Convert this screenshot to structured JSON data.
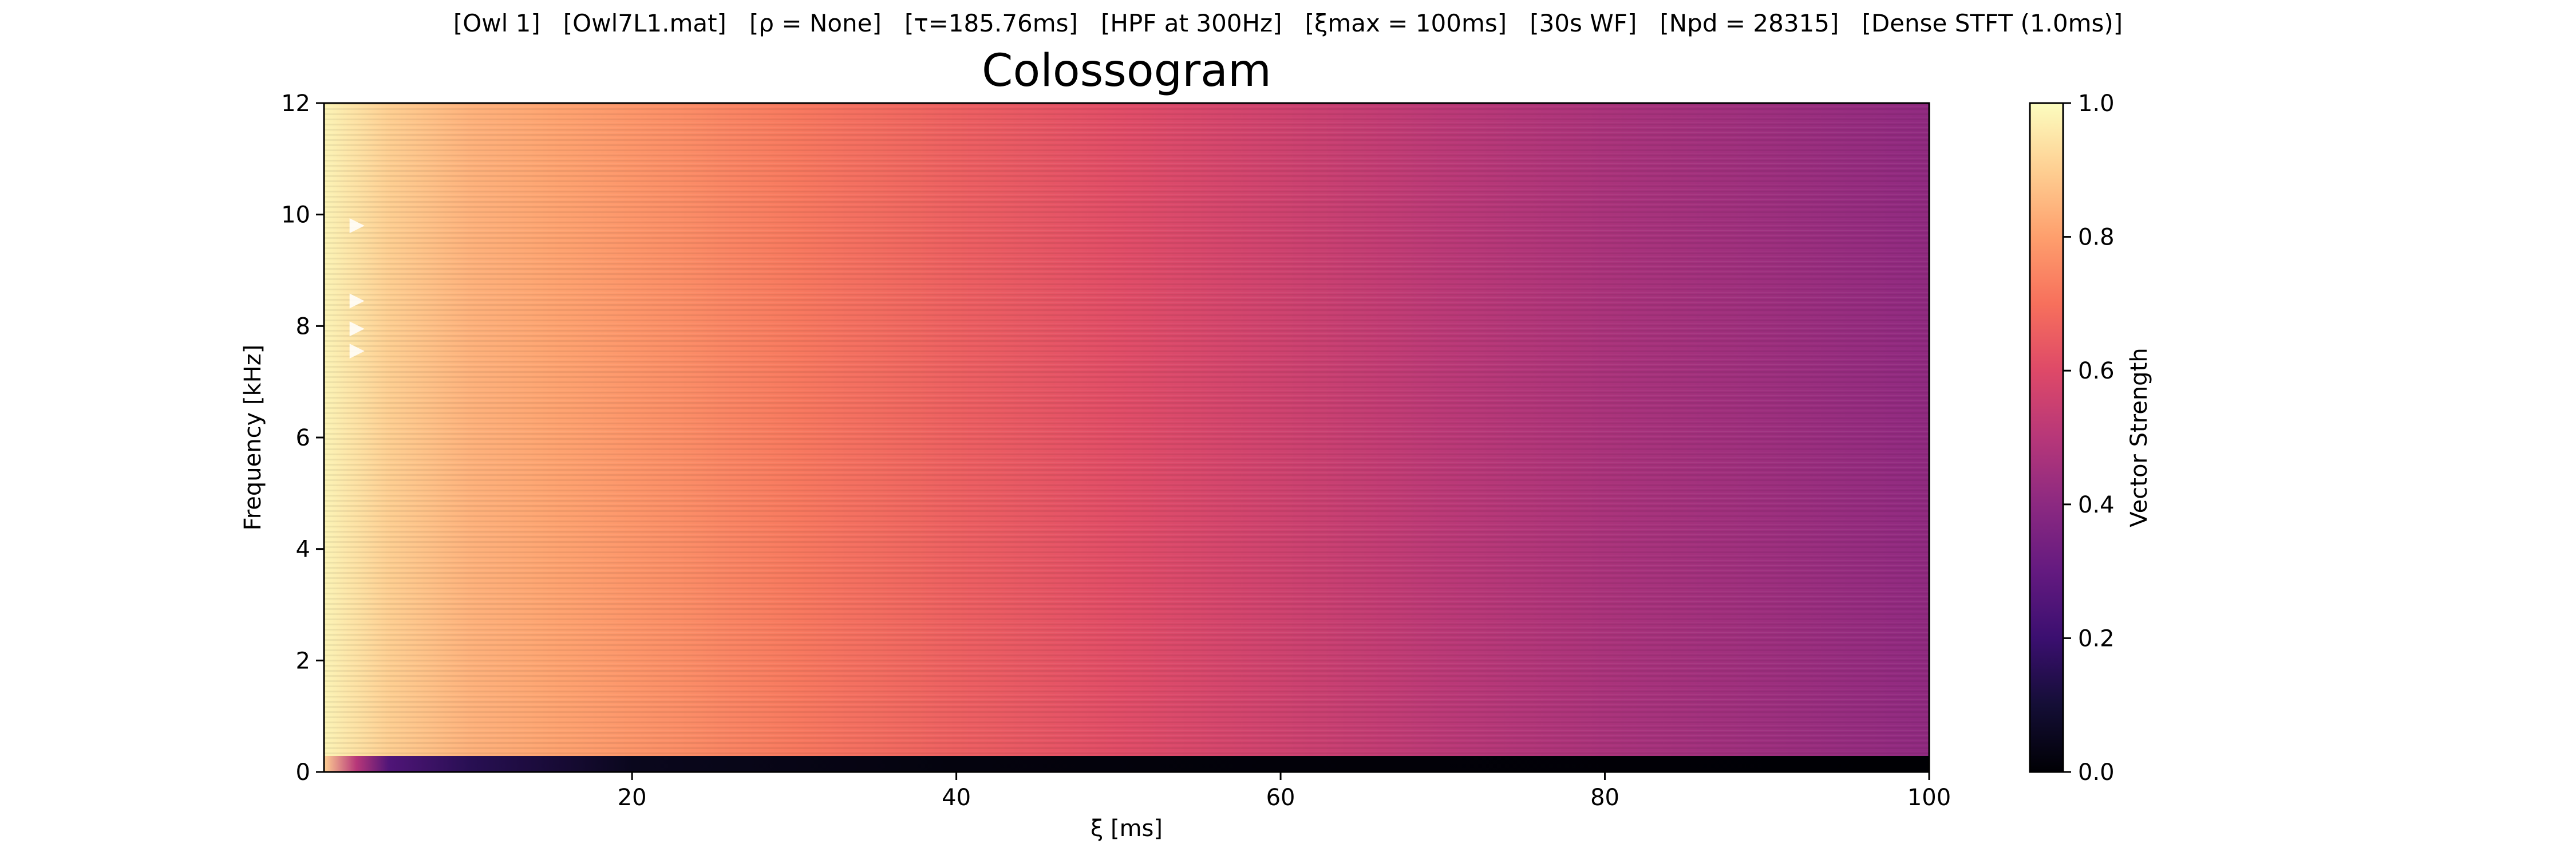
{
  "suptitle": "[Owl 1]   [Owl7L1.mat]   [ρ = None]   [τ=185.76ms]   [HPF at 300Hz]   [ξmax = 100ms]   [30s WF]   [Npd = 28315]   [Dense STFT (1.0ms)]",
  "chart_data": {
    "type": "heatmap",
    "title": "Colossogram",
    "xlabel": "ξ [ms]",
    "ylabel": "Frequency [kHz]",
    "xlim": [
      1,
      100
    ],
    "ylim": [
      0,
      12
    ],
    "x_ticks": [
      20,
      40,
      60,
      80,
      100
    ],
    "y_ticks": [
      0,
      2,
      4,
      6,
      8,
      10,
      12
    ],
    "colormap": "magma",
    "colorbar": {
      "label": "Vector Strength",
      "range": [
        0.0,
        1.0
      ],
      "ticks": [
        0.0,
        0.2,
        0.4,
        0.6,
        0.8,
        1.0
      ],
      "tick_labels": [
        "0.0",
        "0.2",
        "0.4",
        "0.6",
        "0.8",
        "1.0"
      ]
    },
    "vector_strength_vs_xi": {
      "xi_ms": [
        1,
        5,
        10,
        15,
        20,
        30,
        40,
        50,
        60,
        70,
        80,
        90,
        100
      ],
      "value": [
        0.98,
        0.9,
        0.84,
        0.81,
        0.78,
        0.72,
        0.66,
        0.61,
        0.56,
        0.51,
        0.47,
        0.44,
        0.41
      ]
    },
    "low_band": {
      "freq_range_khz": [
        0,
        0.3
      ],
      "xi_ms": [
        1,
        3,
        5,
        10,
        20,
        40,
        60,
        100
      ],
      "value": [
        0.9,
        0.5,
        0.25,
        0.15,
        0.05,
        0.02,
        0.01,
        0.0
      ]
    },
    "peak_markers": {
      "xi_ms": 3,
      "freq_khz": [
        9.8,
        8.45,
        7.95,
        7.55
      ]
    },
    "grid": false,
    "legend": "none"
  }
}
